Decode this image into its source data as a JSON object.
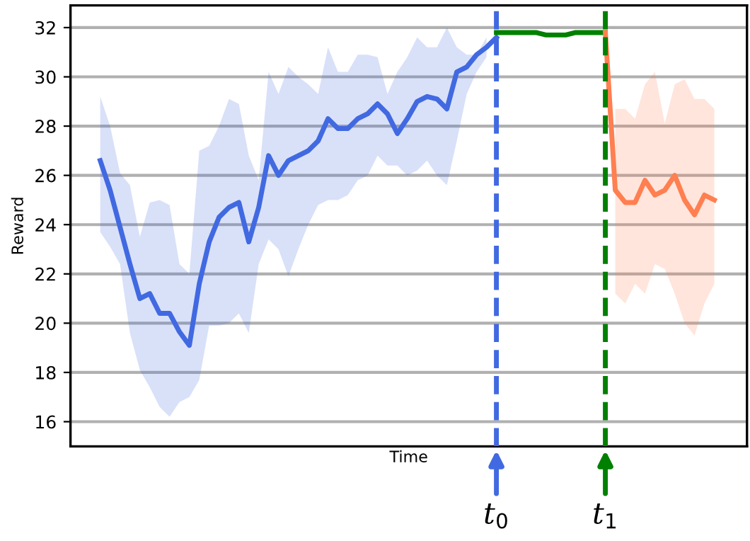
{
  "chart_data": {
    "type": "line",
    "xlabel": "Time",
    "ylabel": "Reward",
    "categories": [
      null,
      null,
      null,
      null,
      null,
      null,
      null,
      null,
      null,
      null,
      null,
      null,
      null,
      null,
      null,
      null,
      null,
      null,
      null,
      null,
      null,
      null,
      null,
      null,
      null,
      null,
      null,
      null,
      null,
      null,
      null,
      null,
      null,
      null,
      null,
      null,
      null,
      null,
      null,
      null,
      null,
      null,
      null,
      null,
      null,
      null,
      null,
      null,
      null,
      null,
      null,
      null,
      null,
      null,
      null,
      null,
      null,
      null,
      null,
      null,
      null,
      null,
      null
    ],
    "series": [
      {
        "color": "#4169e1",
        "values": [
          26.6,
          25.4,
          23.9,
          22.4,
          21.0,
          21.2,
          20.4,
          20.4,
          19.65,
          19.1,
          21.6,
          23.3,
          24.3,
          24.7,
          24.9,
          23.3,
          24.7,
          26.8,
          26.0,
          26.6,
          26.8,
          27.0,
          27.4,
          28.3,
          27.9,
          27.9,
          28.3,
          28.5,
          28.9,
          28.5,
          27.7,
          28.3,
          29.0,
          29.2,
          29.1,
          28.7,
          30.2,
          30.4,
          30.9,
          31.2,
          31.6,
          null,
          null,
          null,
          null,
          null,
          null,
          null,
          null,
          null,
          null,
          null,
          null,
          null,
          null,
          null,
          null,
          null,
          null,
          null,
          null,
          null,
          null
        ],
        "upper": [
          29.2,
          28.0,
          26.1,
          25.6,
          23.5,
          24.9,
          25.0,
          24.8,
          22.4,
          22.0,
          27.0,
          27.2,
          28.0,
          29.1,
          28.9,
          26.8,
          25.8,
          30.2,
          29.3,
          30.4,
          30.0,
          29.7,
          29.3,
          31.2,
          30.2,
          30.2,
          30.9,
          30.9,
          30.8,
          29.3,
          30.2,
          30.8,
          31.6,
          31.2,
          31.2,
          32.0,
          31.2,
          30.9,
          30.9,
          31.6,
          null,
          null,
          null,
          null,
          null,
          null,
          null,
          null,
          null,
          null,
          null,
          null,
          null,
          null,
          null,
          null,
          null,
          null,
          null,
          null,
          null,
          null,
          null
        ],
        "lower": [
          23.7,
          23.1,
          22.4,
          19.6,
          18.1,
          17.4,
          16.6,
          16.2,
          16.8,
          17.0,
          17.7,
          19.9,
          19.9,
          20.0,
          20.4,
          19.6,
          22.4,
          23.4,
          23.0,
          21.9,
          23.0,
          24.0,
          24.8,
          25.0,
          25.0,
          25.2,
          25.8,
          26.0,
          26.8,
          26.4,
          26.4,
          26.0,
          26.2,
          26.6,
          26.0,
          25.6,
          27.4,
          29.3,
          30.2,
          30.8,
          null,
          null,
          null,
          null,
          null,
          null,
          null,
          null,
          null,
          null,
          null,
          null,
          null,
          null,
          null,
          null,
          null,
          null,
          null,
          null,
          null,
          null,
          null
        ]
      },
      {
        "color": "#008000",
        "values": [
          null,
          null,
          null,
          null,
          null,
          null,
          null,
          null,
          null,
          null,
          null,
          null,
          null,
          null,
          null,
          null,
          null,
          null,
          null,
          null,
          null,
          null,
          null,
          null,
          null,
          null,
          null,
          null,
          null,
          null,
          null,
          null,
          null,
          null,
          null,
          null,
          null,
          null,
          null,
          null,
          31.8,
          31.8,
          31.8,
          31.8,
          31.8,
          31.7,
          31.7,
          31.7,
          31.8,
          31.8,
          31.8,
          31.8,
          null,
          null,
          null,
          null,
          null,
          null,
          null,
          null,
          null,
          null,
          null
        ]
      },
      {
        "color": "#ff7f50",
        "values": [
          null,
          null,
          null,
          null,
          null,
          null,
          null,
          null,
          null,
          null,
          null,
          null,
          null,
          null,
          null,
          null,
          null,
          null,
          null,
          null,
          null,
          null,
          null,
          null,
          null,
          null,
          null,
          null,
          null,
          null,
          null,
          null,
          null,
          null,
          null,
          null,
          null,
          null,
          null,
          null,
          null,
          null,
          null,
          null,
          null,
          null,
          null,
          null,
          null,
          null,
          null,
          31.8,
          25.4,
          24.9,
          24.9,
          25.8,
          25.2,
          25.4,
          26.0,
          25.0,
          24.4,
          25.2,
          25.0
        ],
        "upper": [
          null,
          null,
          null,
          null,
          null,
          null,
          null,
          null,
          null,
          null,
          null,
          null,
          null,
          null,
          null,
          null,
          null,
          null,
          null,
          null,
          null,
          null,
          null,
          null,
          null,
          null,
          null,
          null,
          null,
          null,
          null,
          null,
          null,
          null,
          null,
          null,
          null,
          null,
          null,
          null,
          null,
          null,
          null,
          null,
          null,
          null,
          null,
          null,
          null,
          null,
          null,
          null,
          28.7,
          28.7,
          28.3,
          29.7,
          30.2,
          28.1,
          29.7,
          29.9,
          29.1,
          29.1,
          28.7
        ],
        "lower": [
          null,
          null,
          null,
          null,
          null,
          null,
          null,
          null,
          null,
          null,
          null,
          null,
          null,
          null,
          null,
          null,
          null,
          null,
          null,
          null,
          null,
          null,
          null,
          null,
          null,
          null,
          null,
          null,
          null,
          null,
          null,
          null,
          null,
          null,
          null,
          null,
          null,
          null,
          null,
          null,
          null,
          null,
          null,
          null,
          null,
          null,
          null,
          null,
          null,
          null,
          null,
          null,
          21.2,
          20.8,
          21.6,
          21.2,
          22.4,
          22.2,
          21.2,
          20.0,
          19.5,
          20.8,
          21.6
        ]
      }
    ],
    "annotations": [
      "t$_{0}$",
      "t$_{1}$"
    ],
    "ylim": [
      15,
      32.9
    ],
    "yticks": [
      16,
      18,
      20,
      22,
      24,
      26,
      28,
      30,
      32
    ],
    "grid": "y",
    "tick_labels": "y",
    "legend": false,
    "marker": "none",
    "line_style": "solid"
  }
}
